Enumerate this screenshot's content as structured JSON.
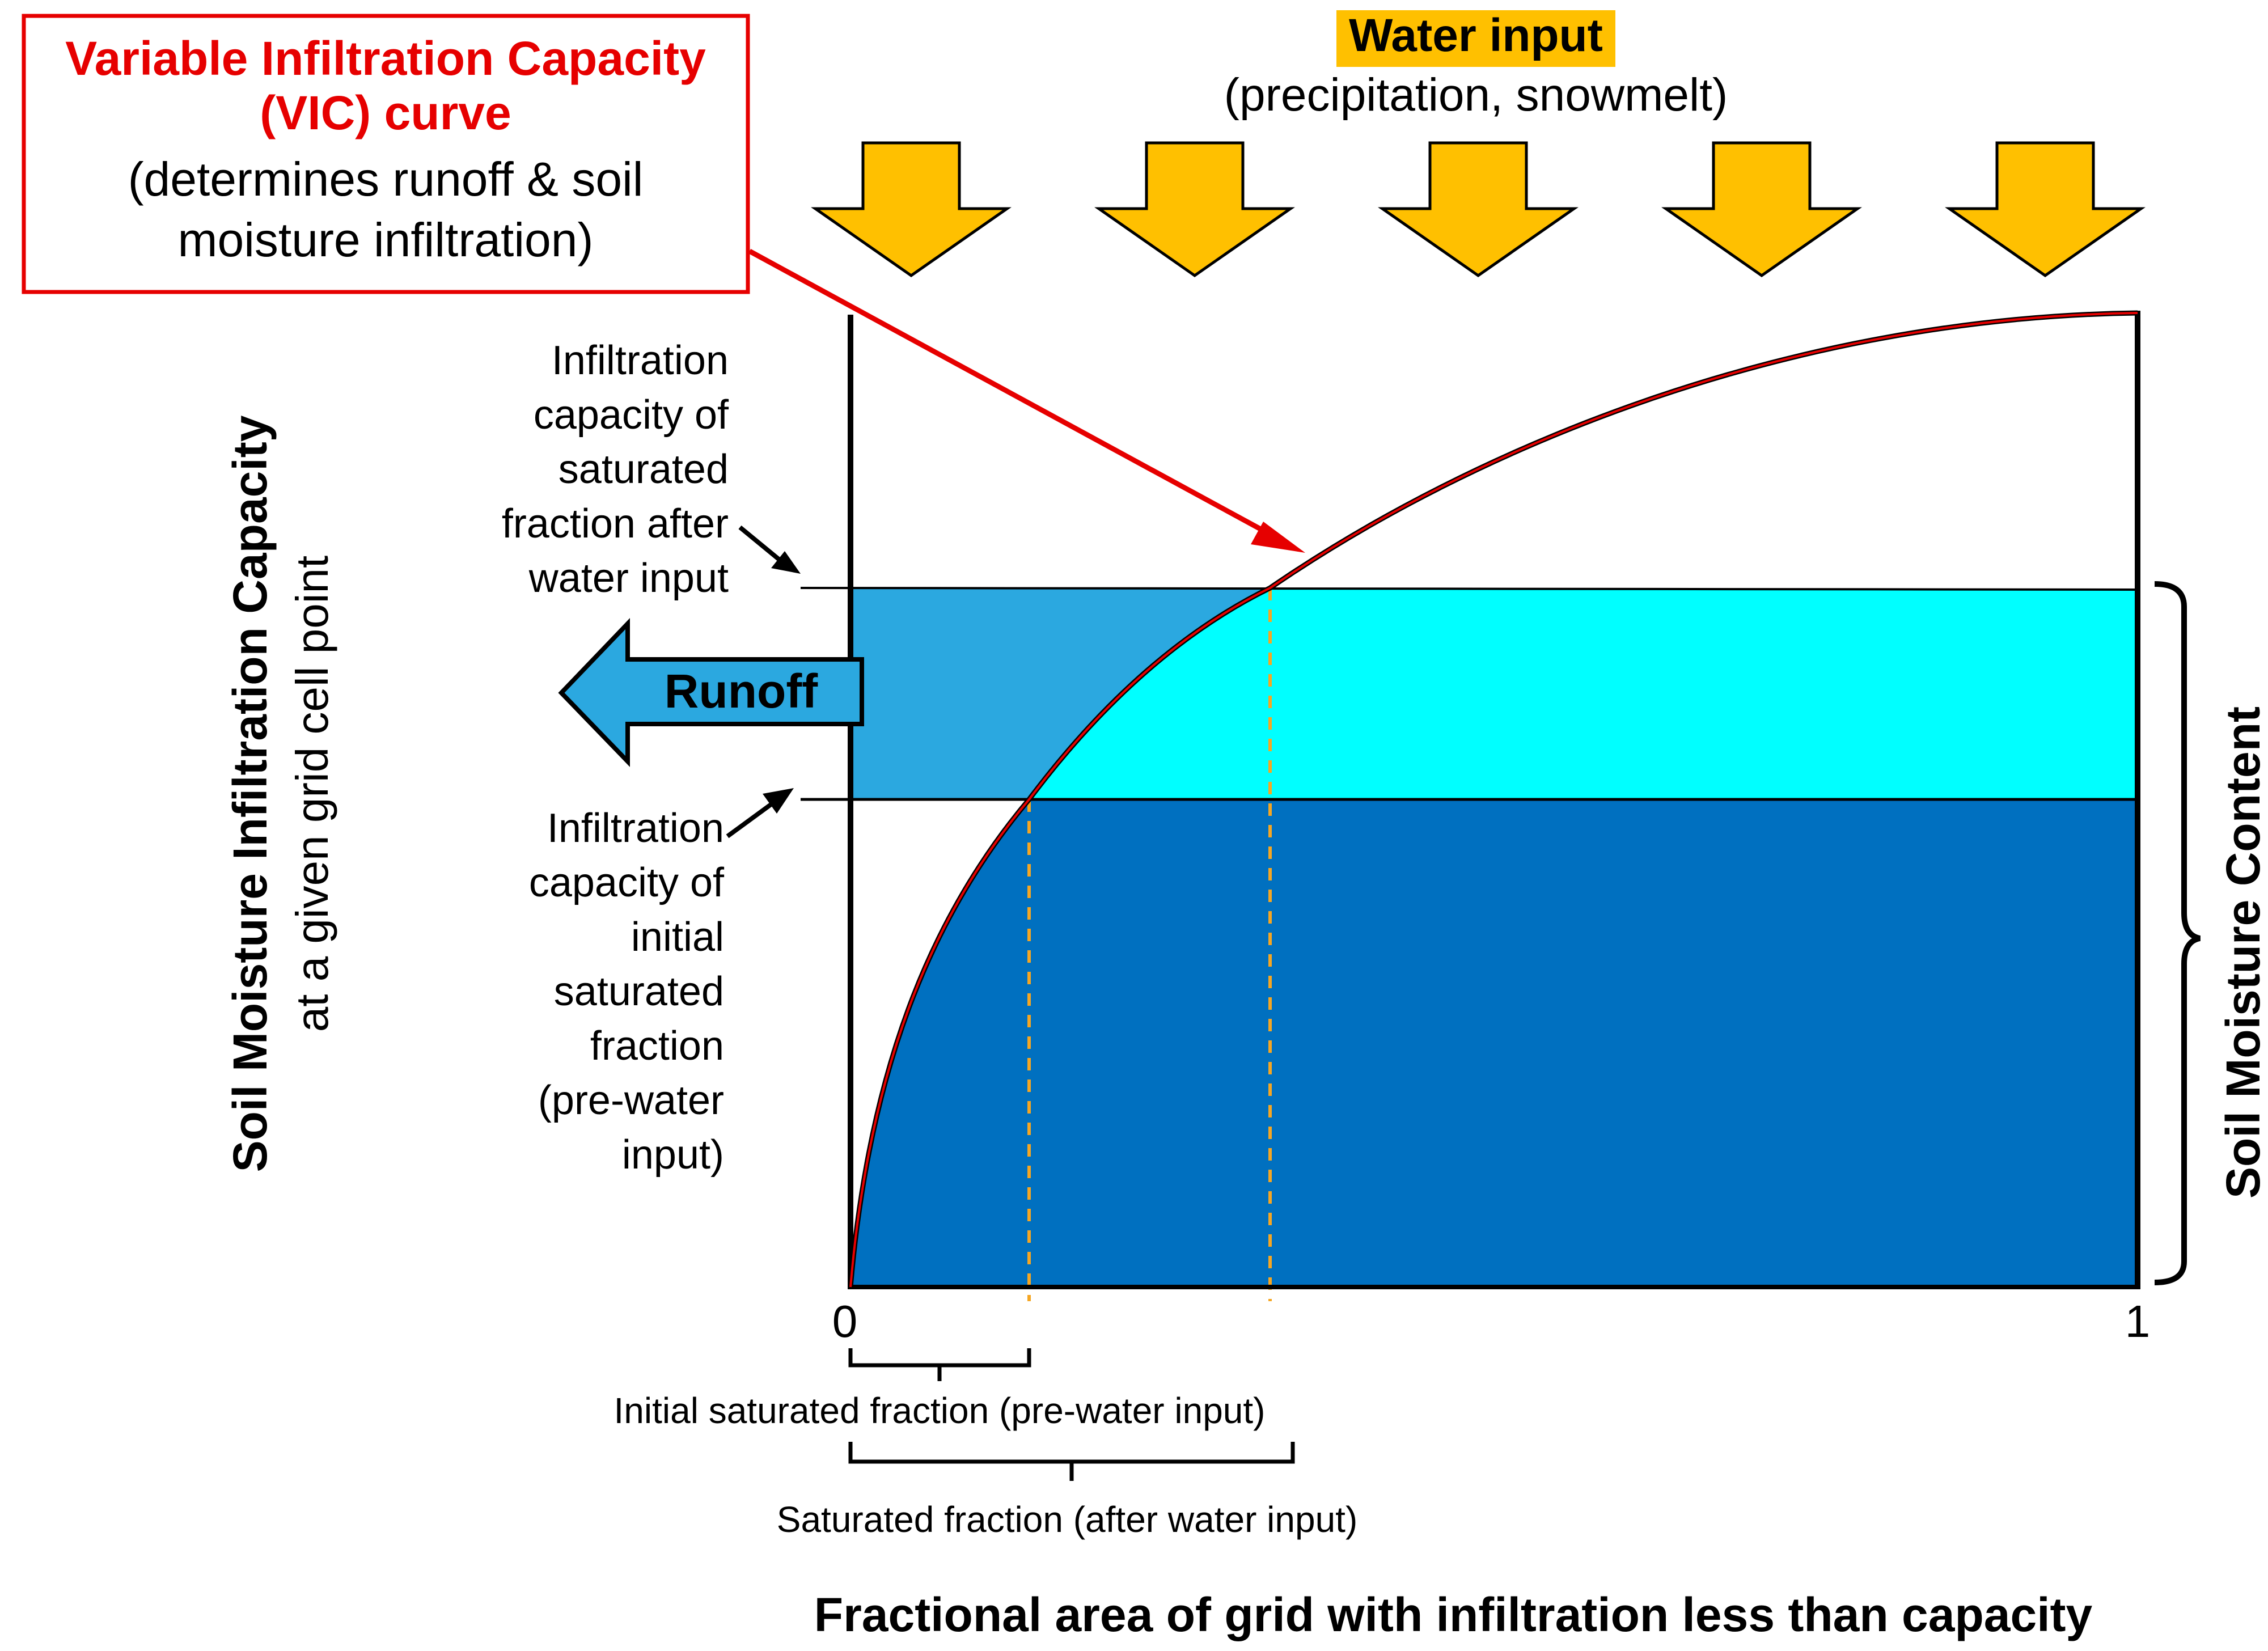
{
  "vic_box": {
    "title_line1": "Variable Infiltration Capacity",
    "title_line2": "(VIC) curve",
    "desc_line1": "(determines runoff & soil",
    "desc_line2": "moisture infiltration)"
  },
  "water_input": {
    "title": "Water input",
    "subtitle": "(precipitation, snowmelt)"
  },
  "left_labels": {
    "after": [
      "Infiltration",
      "capacity of",
      "saturated",
      "fraction after",
      "water input"
    ],
    "initial": [
      "Infiltration",
      "capacity of",
      "initial",
      "saturated",
      "fraction",
      "(pre-water",
      "input)"
    ]
  },
  "runoff_label": "Runoff",
  "y_axis": {
    "title": "Soil Moisture Infiltration Capacity",
    "subtitle": "at a given grid cell point"
  },
  "right_axis_label": "Soil Moisture Content",
  "x_ticks": {
    "zero": "0",
    "one": "1"
  },
  "brackets": {
    "initial": "Initial saturated fraction (pre-water input)",
    "after": "Saturated fraction (after water input)"
  },
  "x_axis_title": "Fractional area of grid with infiltration less than capacity",
  "colors": {
    "water_arrow": "#FFC000",
    "highlight": "#FFC000",
    "runoff_fill": "#2BA8E0",
    "infiltration_fill": "#00FFFF",
    "soil_fill": "#0070C0",
    "curve": "#E60000",
    "dashed": "#F5A623"
  }
}
